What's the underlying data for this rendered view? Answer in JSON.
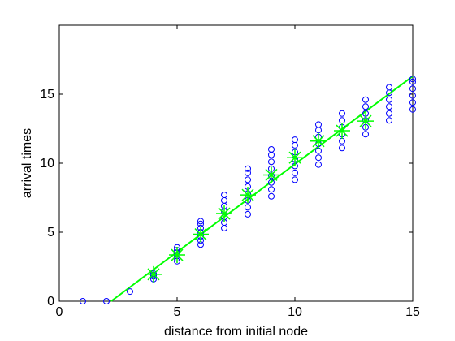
{
  "chart_data": {
    "type": "scatter",
    "title": "",
    "xlabel": "distance from initial node",
    "ylabel": "arrival times",
    "xlim": [
      0,
      15
    ],
    "ylim": [
      0,
      20
    ],
    "xticks": [
      0,
      5,
      10,
      15
    ],
    "yticks": [
      0,
      5,
      10,
      15
    ],
    "grid": false,
    "legend": "none",
    "colors": {
      "samples": "#0000ff",
      "mean": "#00ff00",
      "fit": "#00ff00",
      "axes": "#000000"
    },
    "series": [
      {
        "marker": "circle",
        "color": "#0000ff",
        "points": [
          [
            1,
            0.0
          ],
          [
            2,
            0.0
          ],
          [
            3,
            0.7
          ],
          [
            4,
            1.6
          ],
          [
            4,
            1.8
          ],
          [
            4,
            1.9
          ],
          [
            4,
            2.0
          ],
          [
            5,
            2.9
          ],
          [
            5,
            3.1
          ],
          [
            5,
            3.3
          ],
          [
            5,
            3.5
          ],
          [
            5,
            3.7
          ],
          [
            5,
            3.9
          ],
          [
            6,
            4.1
          ],
          [
            6,
            4.4
          ],
          [
            6,
            4.7
          ],
          [
            6,
            5.0
          ],
          [
            6,
            5.3
          ],
          [
            6,
            5.6
          ],
          [
            6,
            5.8
          ],
          [
            7,
            5.3
          ],
          [
            7,
            5.7
          ],
          [
            7,
            6.1
          ],
          [
            7,
            6.5
          ],
          [
            7,
            6.9
          ],
          [
            7,
            7.3
          ],
          [
            7,
            7.7
          ],
          [
            8,
            6.3
          ],
          [
            8,
            6.8
          ],
          [
            8,
            7.3
          ],
          [
            8,
            7.8
          ],
          [
            8,
            8.3
          ],
          [
            8,
            8.8
          ],
          [
            8,
            9.3
          ],
          [
            8,
            9.6
          ],
          [
            9,
            7.6
          ],
          [
            9,
            8.1
          ],
          [
            9,
            8.6
          ],
          [
            9,
            9.1
          ],
          [
            9,
            9.6
          ],
          [
            9,
            10.1
          ],
          [
            9,
            10.6
          ],
          [
            9,
            11.0
          ],
          [
            10,
            8.8
          ],
          [
            10,
            9.3
          ],
          [
            10,
            9.8
          ],
          [
            10,
            10.3
          ],
          [
            10,
            10.8
          ],
          [
            10,
            11.3
          ],
          [
            10,
            11.7
          ],
          [
            11,
            9.9
          ],
          [
            11,
            10.4
          ],
          [
            11,
            10.9
          ],
          [
            11,
            11.4
          ],
          [
            11,
            11.9
          ],
          [
            11,
            12.4
          ],
          [
            11,
            12.8
          ],
          [
            12,
            11.1
          ],
          [
            12,
            11.6
          ],
          [
            12,
            12.1
          ],
          [
            12,
            12.6
          ],
          [
            12,
            13.1
          ],
          [
            12,
            13.6
          ],
          [
            13,
            12.1
          ],
          [
            13,
            12.6
          ],
          [
            13,
            13.1
          ],
          [
            13,
            13.6
          ],
          [
            13,
            14.1
          ],
          [
            13,
            14.6
          ],
          [
            14,
            13.1
          ],
          [
            14,
            13.6
          ],
          [
            14,
            14.1
          ],
          [
            14,
            14.6
          ],
          [
            14,
            15.1
          ],
          [
            14,
            15.5
          ],
          [
            15,
            13.9
          ],
          [
            15,
            14.4
          ],
          [
            15,
            14.9
          ],
          [
            15,
            15.4
          ],
          [
            15,
            15.9
          ],
          [
            15,
            16.1
          ]
        ]
      },
      {
        "marker": "asterisk",
        "color": "#00ff00",
        "points": [
          [
            4,
            1.95
          ],
          [
            5,
            3.35
          ],
          [
            6,
            4.85
          ],
          [
            7,
            6.35
          ],
          [
            8,
            7.7
          ],
          [
            9,
            9.15
          ],
          [
            10,
            10.4
          ],
          [
            11,
            11.6
          ],
          [
            12,
            12.35
          ],
          [
            13,
            13.05
          ]
        ]
      },
      {
        "marker": "line",
        "color": "#00ff00",
        "points": [
          [
            2.2,
            0.0
          ],
          [
            15,
            16.3
          ]
        ]
      }
    ]
  }
}
